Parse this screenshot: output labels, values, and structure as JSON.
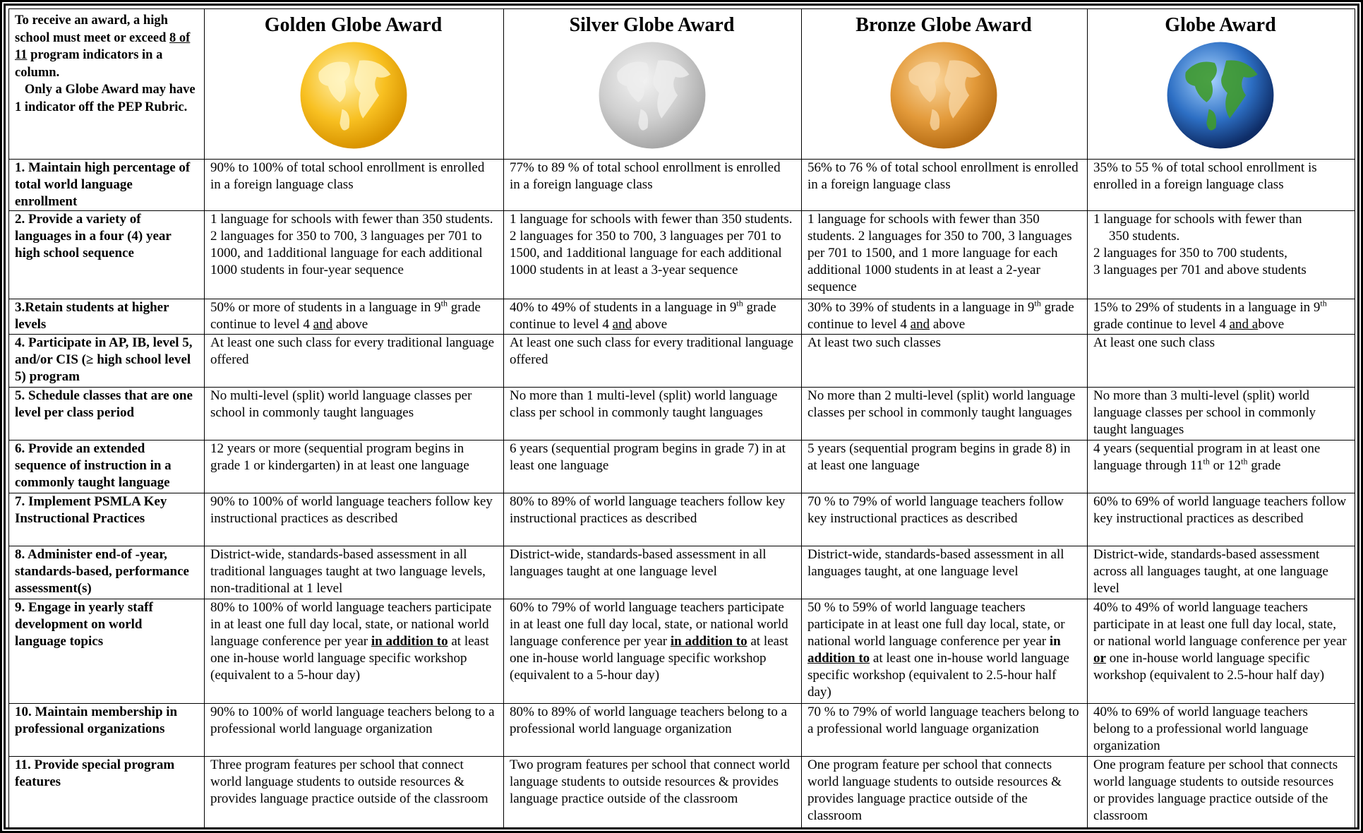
{
  "header": {
    "intro": [
      "To receive an award, a high school must meet or exceed ",
      "8 of 11",
      " program indicators in a column.",
      "Only a Globe Award may have 1 indicator off the PEP Rubric."
    ],
    "awards": [
      "Golden Globe Award",
      "Silver Globe Award",
      "Bronze Globe Award",
      "Globe Award"
    ]
  },
  "rows": [
    {
      "indicator": "1. Maintain high percentage of total world language enrollment",
      "cells": [
        "90% to 100% of total school enrollment is enrolled in a foreign language class",
        "77% to 89 %  of total school enrollment is enrolled in a foreign language class",
        "56% to 76 % of total school enrollment is enrolled in a foreign language class",
        "35% to 55 % of total school enrollment is enrolled in a foreign language class"
      ]
    },
    {
      "indicator": "2. Provide a variety of languages in a four (4) year high school sequence",
      "cells": [
        "1 language for schools with fewer than 350 students. 2 languages for 350 to 700, 3 languages per 701 to 1000, and 1additional language for each additional 1000 students in four-year sequence",
        "1 language for schools with fewer than 350 students. 2 languages for 350 to 700, 3 languages per 701 to 1500, and 1additional language for each additional 1000 students in at least a 3-year sequence",
        "1 language for schools with fewer than 350 students. 2 languages for 350 to 700, 3 languages per 701 to 1500, and 1 more language for each additional 1000 students in at least a 2-year sequence",
        [
          "1 language for schools with fewer than",
          "350 students.",
          "2 languages for 350 to 700 students,",
          "3 languages per 701 and above students"
        ]
      ]
    },
    {
      "indicator": "3.Retain students at higher levels",
      "cells": [
        [
          "50% or more of students in a language in 9",
          "th",
          " grade continue to level 4 ",
          "and",
          " above"
        ],
        [
          "40% to 49% of students in a language in 9",
          "th",
          " grade continue to level 4 ",
          "and",
          " above"
        ],
        [
          "30% to 39% of students in a language in 9",
          "th",
          " grade continue to level 4 ",
          "and",
          " above"
        ],
        [
          "15% to 29% of students in a language in 9",
          "th",
          " grade continue to level 4 ",
          "and a",
          "bove"
        ]
      ]
    },
    {
      "indicator": "4. Participate in AP, IB, level 5, and/or CIS (≥ high school level 5)  program",
      "cells": [
        "At least one such class for every traditional language offered",
        "At least one such class for every traditional language offered",
        "At least two such classes",
        "At least one such class"
      ]
    },
    {
      "indicator": "5. Schedule classes that are one level per class period",
      "cells": [
        "No multi-level (split) world language classes per school in commonly taught languages",
        "No more than 1 multi-level (split) world language class per school in commonly taught languages",
        "No more than 2 multi-level (split) world language classes per school in commonly taught languages",
        "No more than 3 multi-level (split) world language classes per school in commonly taught languages"
      ]
    },
    {
      "indicator": "6. Provide an extended sequence of instruction in a commonly taught language",
      "cells": [
        "12 years or more (sequential program begins in grade 1 or kindergarten) in at least one language",
        "6 years (sequential program begins in grade 7) in at least one language",
        "5 years (sequential program begins in grade 8) in at least one language",
        [
          "4 years (sequential program in at least one language through 11",
          "th",
          " or 12",
          "th",
          " grade"
        ]
      ]
    },
    {
      "indicator": "7. Implement PSMLA Key Instructional Practices",
      "cells": [
        "90% to 100% of world language teachers follow key instructional practices as described",
        "80% to 89% of world language teachers follow key instructional practices as described",
        "70 % to 79% of world language teachers follow key instructional practices as described",
        "60% to 69% of world language teachers follow key instructional practices as described"
      ]
    },
    {
      "indicator": "8. Administer end-of -year, standards-based, performance assessment(s)",
      "cells": [
        "District-wide, standards-based assessment in all traditional languages taught at two language levels, non-traditional at 1 level",
        "District-wide, standards-based assessment in all languages taught at one language level",
        "District-wide, standards-based assessment in all languages taught, at one language level",
        "District-wide, standards-based assessment across all languages taught, at one language level"
      ]
    },
    {
      "indicator": "9. Engage in yearly staff development on world language topics",
      "cells": [
        [
          "80% to 100%  of world language teachers participate in at least one full day local, state, or national world language conference per year ",
          "in addition to",
          " at least one in-house world language specific workshop (equivalent to a 5-hour day)"
        ],
        [
          "60% to 79% of world language teachers participate in at least one full day local, state, or national world language conference per year ",
          "in addition to",
          " at least one in-house world language specific workshop (equivalent to a 5-hour day)"
        ],
        [
          "50 % to 59% of world language teachers participate in at least one full day local, state, or national world language conference per year ",
          "in ",
          "addition to",
          " at least one in-house world language specific workshop (equivalent to 2.5-hour half day)"
        ],
        [
          "40% to 49% of world language teachers participate in at least one full day local, state, or national world language conference per year ",
          "or",
          " one in-house world language specific workshop (equivalent to 2.5-hour half day)"
        ]
      ]
    },
    {
      "indicator": "10. Maintain membership in professional organizations",
      "cells": [
        "90% to 100% of world language teachers belong to a professional world language organization",
        "80% to 89% of world language teachers belong to a professional world language organization",
        "70 % to 79% of world language teachers belong to a professional world language organization",
        "40% to 69% of world language teachers belong to a professional world language organization"
      ]
    },
    {
      "indicator": "11. Provide special program features",
      "cells": [
        "Three program features per school that connect world language students to  outside resources & provides language practice outside of the classroom",
        "Two program features per school that connect world language students to  outside resources & provides language practice outside of the classroom",
        "One program feature per school that connects world language students to outside resources & provides language practice outside of the classroom",
        "One program feature per school that connects world language students to outside resources or provides language practice outside of the classroom"
      ]
    }
  ]
}
